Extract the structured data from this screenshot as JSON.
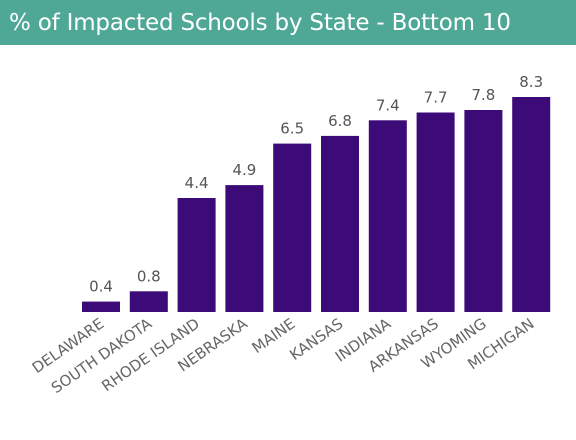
{
  "title": "% of Impacted Schools by State - Bottom 10",
  "colors": {
    "header_bg": "#4fa895",
    "bar": "#3c0b78",
    "value_label": "#555555",
    "tick_label": "#666666"
  },
  "chart_data": {
    "type": "bar",
    "title": "% of Impacted Schools by State - Bottom 10",
    "xlabel": "",
    "ylabel": "",
    "categories": [
      "DELAWARE",
      "SOUTH DAKOTA",
      "RHODE ISLAND",
      "NEBRASKA",
      "MAINE",
      "KANSAS",
      "INDIANA",
      "ARKANSAS",
      "WYOMING",
      "MICHIGAN"
    ],
    "values": [
      0.4,
      0.8,
      4.4,
      4.9,
      6.5,
      6.8,
      7.4,
      7.7,
      7.8,
      8.3
    ],
    "ylim": [
      0,
      8.3
    ],
    "grid": false,
    "legend": "none",
    "data_labels": true
  }
}
